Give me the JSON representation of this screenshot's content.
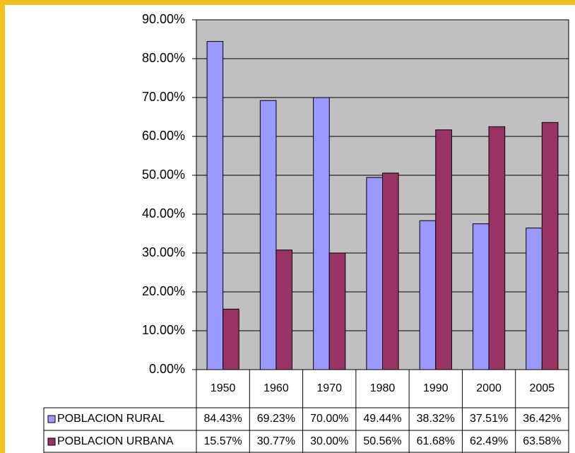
{
  "chart_data": {
    "type": "bar",
    "categories": [
      "1950",
      "1960",
      "1970",
      "1980",
      "1990",
      "2000",
      "2005"
    ],
    "series": [
      {
        "name": "POBLACION RURAL",
        "color": "#9999ff",
        "values": [
          84.43,
          69.23,
          70.0,
          49.44,
          38.32,
          37.51,
          36.42
        ],
        "value_labels": [
          "84.43%",
          "69.23%",
          "70.00%",
          "49.44%",
          "38.32%",
          "37.51%",
          "36.42%"
        ]
      },
      {
        "name": "POBLACION URBANA",
        "color": "#993366",
        "values": [
          15.57,
          30.77,
          30.0,
          50.56,
          61.68,
          62.49,
          63.58
        ],
        "value_labels": [
          "15.57%",
          "30.77%",
          "30.00%",
          "50.56%",
          "61.68%",
          "62.49%",
          "63.58%"
        ]
      }
    ],
    "ylim": [
      0,
      90
    ],
    "yticks": [
      {
        "value": 0,
        "label": "0.00%"
      },
      {
        "value": 10,
        "label": "10.00%"
      },
      {
        "value": 20,
        "label": "20.00%"
      },
      {
        "value": 30,
        "label": "30.00%"
      },
      {
        "value": 40,
        "label": "40.00%"
      },
      {
        "value": 50,
        "label": "50.00%"
      },
      {
        "value": 60,
        "label": "60.00%"
      },
      {
        "value": 70,
        "label": "70.00%"
      },
      {
        "value": 80,
        "label": "80.00%"
      },
      {
        "value": 90,
        "label": "90.00%"
      }
    ],
    "grid": true,
    "plot_background": "#c0c0c0"
  }
}
